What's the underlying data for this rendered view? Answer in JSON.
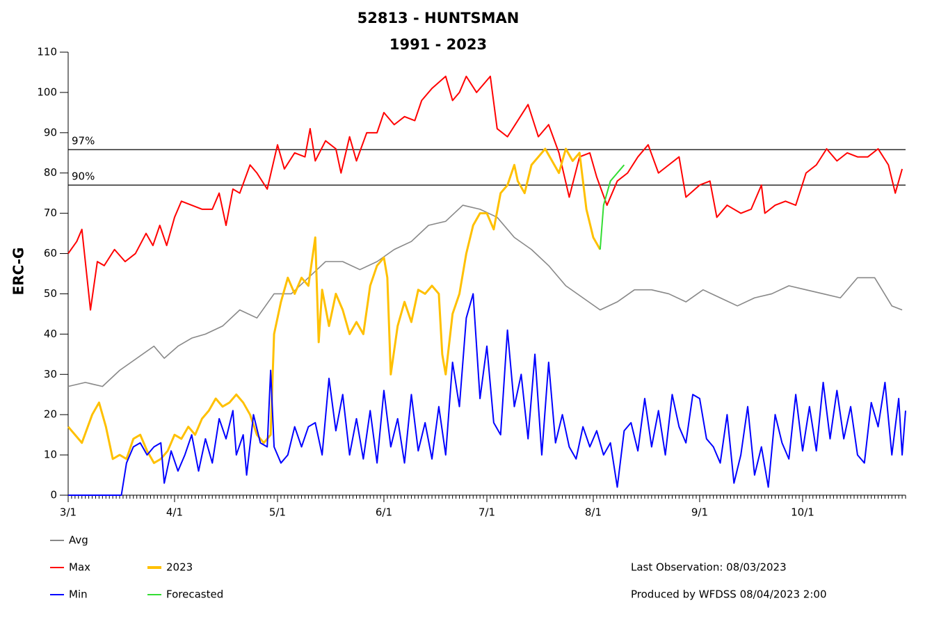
{
  "chart_data": {
    "type": "line",
    "title": "52813 - HUNTSMAN",
    "subtitle": "1991 - 2023",
    "y_label": "ERC-G",
    "xlim": [
      0,
      244
    ],
    "ylim": [
      0,
      110
    ],
    "xticks": [
      {
        "value": 0,
        "label": "3/1"
      },
      {
        "value": 31,
        "label": "4/1"
      },
      {
        "value": 61,
        "label": "5/1"
      },
      {
        "value": 92,
        "label": "6/1"
      },
      {
        "value": 122,
        "label": "7/1"
      },
      {
        "value": 153,
        "label": "8/1"
      },
      {
        "value": 184,
        "label": "9/1"
      },
      {
        "value": 214,
        "label": "10/1"
      }
    ],
    "yticks": [
      0,
      10,
      20,
      30,
      40,
      50,
      60,
      70,
      80,
      90,
      100,
      110
    ],
    "thresholds": [
      {
        "label": "97%",
        "value": 85.8
      },
      {
        "label": "90%",
        "value": 77
      }
    ],
    "series": [
      {
        "name": "Avg",
        "color": "#888888",
        "x": [
          0,
          5,
          10,
          15,
          20,
          25,
          28,
          32,
          36,
          40,
          45,
          50,
          55,
          60,
          65,
          70,
          75,
          80,
          85,
          90,
          95,
          100,
          105,
          110,
          115,
          120,
          125,
          130,
          135,
          140,
          145,
          150,
          155,
          160,
          165,
          170,
          175,
          180,
          185,
          190,
          195,
          200,
          205,
          210,
          215,
          220,
          225,
          230,
          235,
          240,
          243
        ],
        "values": [
          27,
          28,
          27,
          31,
          34,
          37,
          34,
          37,
          39,
          40,
          42,
          46,
          44,
          50,
          50,
          54,
          58,
          58,
          56,
          58,
          61,
          63,
          67,
          68,
          72,
          71,
          69,
          64,
          61,
          57,
          52,
          49,
          46,
          48,
          51,
          51,
          50,
          48,
          51,
          49,
          47,
          49,
          50,
          52,
          51,
          50,
          49,
          54,
          54,
          47,
          46
        ]
      },
      {
        "name": "Max",
        "color": "#ff0000",
        "x": [
          0,
          2.5,
          4,
          6.5,
          8.5,
          10.5,
          13.5,
          16.6,
          19.6,
          22.7,
          24.7,
          26.7,
          28.7,
          31,
          33,
          36,
          39,
          42,
          44,
          46,
          48,
          50,
          53,
          55,
          58,
          61,
          63,
          66,
          69,
          70.5,
          72,
          75,
          78,
          79.5,
          82,
          84,
          87,
          90,
          92,
          95,
          98,
          101,
          103,
          106,
          110,
          112,
          114,
          116,
          119,
          123,
          125,
          128,
          131,
          134,
          137,
          140,
          143,
          146,
          149,
          152,
          154,
          157,
          160,
          163,
          166,
          169,
          172,
          175,
          178,
          180,
          184,
          187,
          189,
          192,
          196,
          199,
          202,
          203,
          206,
          209,
          212,
          215,
          218,
          221,
          224,
          227,
          230,
          233,
          236,
          239,
          241,
          243
        ],
        "values": [
          60,
          63,
          66,
          46,
          58,
          57,
          61,
          58,
          60,
          65,
          62,
          67,
          62,
          69,
          73,
          72,
          71,
          71,
          75,
          67,
          76,
          75,
          82,
          80,
          76,
          87,
          81,
          85,
          84,
          91,
          83,
          88,
          86,
          80,
          89,
          83,
          90,
          90,
          95,
          92,
          94,
          93,
          98,
          101,
          104,
          98,
          100,
          104,
          100,
          104,
          91,
          89,
          93,
          97,
          89,
          92,
          85,
          74,
          84,
          85,
          79,
          72,
          78,
          80,
          84,
          87,
          80,
          82,
          84,
          74,
          77,
          78,
          69,
          72,
          70,
          71,
          77,
          70,
          72,
          73,
          72,
          80,
          82,
          86,
          83,
          85,
          84,
          84,
          86,
          82,
          75,
          81
        ]
      },
      {
        "name": "2023",
        "color": "#ffc000",
        "x": [
          0,
          2,
          4,
          7,
          9,
          11,
          13,
          15,
          17,
          19,
          21,
          23,
          25,
          27,
          29,
          31,
          33,
          35,
          37,
          39,
          41,
          43,
          45,
          47,
          49,
          51,
          53,
          55,
          57,
          59,
          60,
          62,
          64,
          66,
          68,
          70,
          72,
          73,
          74,
          76,
          78,
          80,
          82,
          84,
          86,
          88,
          90,
          92,
          93,
          94,
          96,
          98,
          100,
          102,
          104,
          106,
          108,
          109,
          110,
          112,
          114,
          116,
          118,
          120,
          122,
          124,
          126,
          128,
          130,
          131,
          133,
          135,
          137,
          139,
          141,
          143,
          145,
          147,
          149,
          151,
          153,
          155
        ],
        "values": [
          17,
          15,
          13,
          20,
          23,
          17,
          9,
          10,
          9,
          14,
          15,
          11,
          8,
          9,
          11,
          15,
          14,
          17,
          15,
          19,
          21,
          24,
          22,
          23,
          25,
          23,
          20,
          15,
          13,
          15,
          40,
          48,
          54,
          50,
          54,
          52,
          64,
          38,
          51,
          42,
          50,
          46,
          40,
          43,
          40,
          52,
          57,
          59,
          54,
          30,
          42,
          48,
          43,
          51,
          50,
          52,
          50,
          35,
          30,
          45,
          50,
          60,
          67,
          70,
          70,
          66,
          75,
          77,
          82,
          78,
          75,
          82,
          84,
          86,
          83,
          80,
          86,
          83,
          85,
          71,
          64,
          61
        ]
      },
      {
        "name": "Min",
        "color": "#0000ff",
        "x": [
          0,
          5,
          10,
          15.5,
          17,
          19,
          21,
          23,
          25,
          27,
          28,
          30,
          32,
          34,
          36,
          38,
          40,
          42,
          44,
          46,
          48,
          49,
          51,
          52,
          54,
          56,
          58,
          59,
          60,
          62,
          64,
          66,
          68,
          70,
          72,
          74,
          76,
          78,
          80,
          82,
          84,
          86,
          88,
          90,
          92,
          94,
          96,
          98,
          100,
          102,
          104,
          106,
          108,
          110,
          112,
          114,
          116,
          118,
          120,
          122,
          124,
          126,
          128,
          130,
          132,
          134,
          136,
          138,
          140,
          142,
          144,
          146,
          148,
          150,
          152,
          154,
          156,
          158,
          160,
          162,
          164,
          166,
          168,
          170,
          172,
          174,
          176,
          178,
          180,
          182,
          184,
          186,
          188,
          190,
          192,
          194,
          196,
          198,
          200,
          202,
          204,
          206,
          208,
          210,
          212,
          214,
          216,
          218,
          220,
          222,
          224,
          226,
          228,
          230,
          232,
          234,
          236,
          238,
          240,
          242,
          243,
          244
        ],
        "values": [
          0,
          0,
          0,
          0,
          8,
          12,
          13,
          10,
          12,
          13,
          3,
          11,
          6,
          10,
          15,
          6,
          14,
          8,
          19,
          14,
          21,
          10,
          15,
          5,
          20,
          13,
          12,
          31,
          12,
          8,
          10,
          17,
          12,
          17,
          18,
          10,
          29,
          16,
          25,
          10,
          19,
          9,
          21,
          8,
          26,
          12,
          19,
          8,
          25,
          11,
          18,
          9,
          22,
          10,
          33,
          22,
          44,
          50,
          24,
          37,
          18,
          15,
          41,
          22,
          30,
          14,
          35,
          10,
          33,
          13,
          20,
          12,
          9,
          17,
          12,
          16,
          10,
          13,
          2,
          16,
          18,
          11,
          24,
          12,
          21,
          10,
          25,
          17,
          13,
          25,
          24,
          14,
          12,
          8,
          20,
          3,
          10,
          22,
          5,
          12,
          2,
          20,
          13,
          9,
          25,
          11,
          22,
          11,
          28,
          14,
          26,
          14,
          22,
          10,
          8,
          23,
          17,
          28,
          10,
          24,
          10,
          21
        ]
      },
      {
        "name": "Forecasted",
        "color": "#33dd33",
        "x": [
          155,
          156,
          157,
          158,
          160,
          161,
          162
        ],
        "values": [
          61,
          72,
          75,
          78,
          80,
          81,
          82
        ]
      }
    ],
    "notes": [
      "Last Observation:  08/03/2023",
      "Produced by WFDSS  08/04/2023  2:00"
    ]
  }
}
